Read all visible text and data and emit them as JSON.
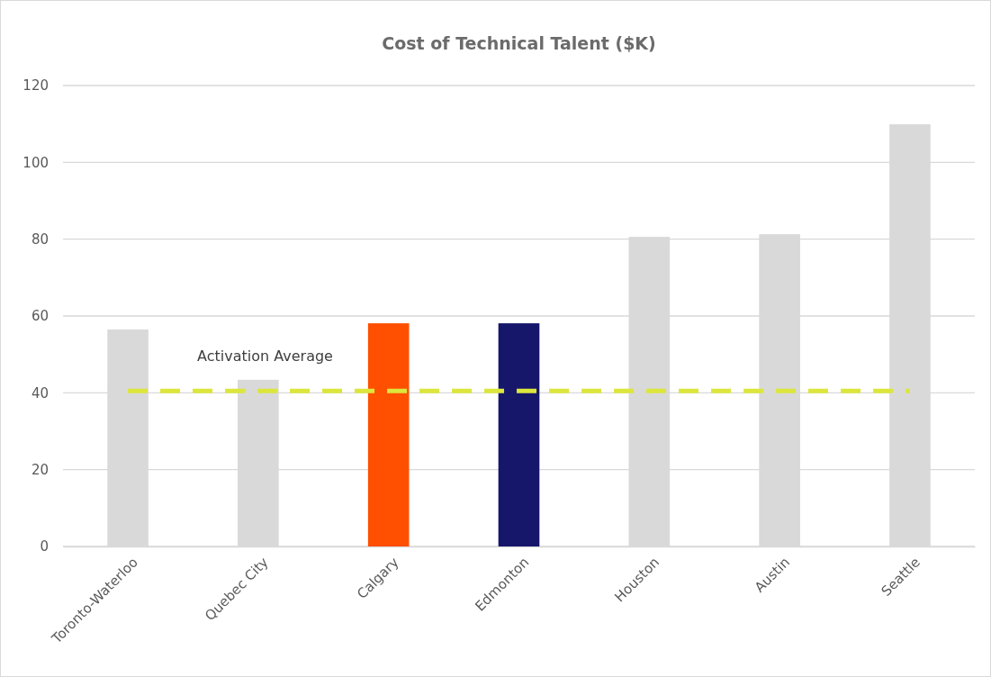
{
  "chart_data": {
    "type": "bar",
    "title": "Cost of Technical Talent ($K)",
    "categories": [
      "Toronto-Waterloo",
      "Quebec City",
      "Calgary",
      "Edmonton",
      "Houston",
      "Austin",
      "Seattle"
    ],
    "values": [
      56.5,
      43.4,
      58.1,
      58.1,
      80.6,
      81.3,
      109.9
    ],
    "colors": [
      "#d9d9d9",
      "#d9d9d9",
      "#ff4f00",
      "#16166b",
      "#d9d9d9",
      "#d9d9d9",
      "#d9d9d9"
    ],
    "ylim": [
      0,
      120
    ],
    "yticks": [
      0,
      20,
      40,
      60,
      80,
      100,
      120
    ],
    "grid": "y",
    "ref_lines": [
      {
        "axis": "y",
        "value": 40.5,
        "label": "Activation Average",
        "color": "#dce63c",
        "line_style": "dashed"
      }
    ]
  }
}
